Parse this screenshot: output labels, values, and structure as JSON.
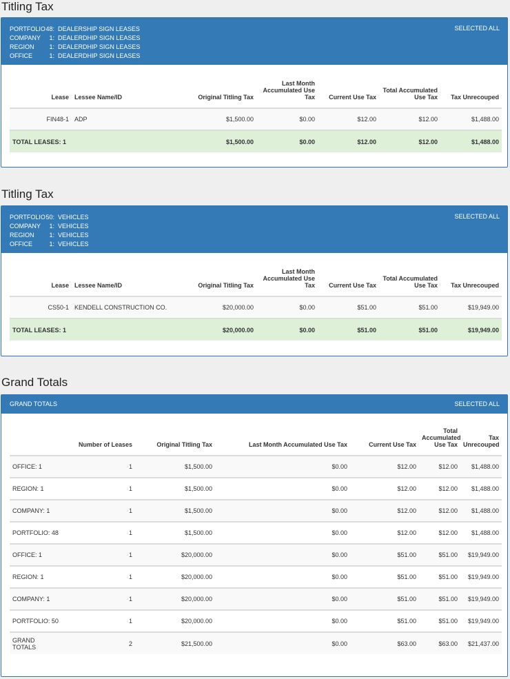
{
  "sections": [
    {
      "title": "Titling Tax",
      "header_lines": [
        {
          "key": "PORTFOLIO",
          "num": "48:",
          "value": "DEALERSHIP SIGN LEASES"
        },
        {
          "key": "COMPANY",
          "num": "1:",
          "value": "DEALERDHIP SIGN LEASES"
        },
        {
          "key": "REGION",
          "num": "1:",
          "value": "DEALERDHIP SIGN LEASES"
        },
        {
          "key": "OFFICE",
          "num": "1:",
          "value": "DEALERDHIP SIGN LEASES"
        }
      ],
      "selected_all": "SELECTED ALL",
      "columns": [
        "Lease",
        "Lessee Name/ID",
        "Original Titling Tax",
        "Last Month Accumulated Use Tax",
        "Current Use Tax",
        "Total Accumulated Use Tax",
        "Tax Unrecouped"
      ],
      "row": {
        "lease": "FIN48-1",
        "lessee": "ADP",
        "original": "$1,500.00",
        "last_month": "$0.00",
        "current": "$12.00",
        "total_accum": "$12.00",
        "unrecouped": "$1,488.00"
      },
      "total": {
        "label": "TOTAL LEASES: 1",
        "original": "$1,500.00",
        "last_month": "$0.00",
        "current": "$12.00",
        "total_accum": "$12.00",
        "unrecouped": "$1,488.00"
      }
    },
    {
      "title": "Titling Tax",
      "header_lines": [
        {
          "key": "PORTFOLIO",
          "num": "50:",
          "value": "VEHICLES"
        },
        {
          "key": "COMPANY",
          "num": "1:",
          "value": "VEHICLES"
        },
        {
          "key": "REGION",
          "num": "1:",
          "value": "VEHICLES"
        },
        {
          "key": "OFFICE",
          "num": "1:",
          "value": "VEHICLES"
        }
      ],
      "selected_all": "SELECTED ALL",
      "columns": [
        "Lease",
        "Lessee Name/ID",
        "Original Titling Tax",
        "Last Month Accumulated Use Tax",
        "Current Use Tax",
        "Total Accumulated Use Tax",
        "Tax Unrecouped"
      ],
      "row": {
        "lease": "CS50-1",
        "lessee": "KENDELL CONSTRUCTION CO.",
        "original": "$20,000.00",
        "last_month": "$0.00",
        "current": "$51.00",
        "total_accum": "$51.00",
        "unrecouped": "$19,949.00"
      },
      "total": {
        "label": "TOTAL LEASES: 1",
        "original": "$20,000.00",
        "last_month": "$0.00",
        "current": "$51.00",
        "total_accum": "$51.00",
        "unrecouped": "$19,949.00"
      }
    }
  ],
  "grand": {
    "title": "Grand Totals",
    "header_label": "GRAND TOTALS",
    "selected_all": "SELECTED ALL",
    "columns": [
      "",
      "Number of Leases",
      "Original Titling Tax",
      "Last Month Accumulated Use Tax",
      "Current Use Tax",
      "Total Accumulated Use Tax",
      "Tax Unrecouped"
    ],
    "rows": [
      {
        "label": "OFFICE: 1",
        "count": "1",
        "original": "$1,500.00",
        "last_month": "$0.00",
        "current": "$12.00",
        "total_accum": "$12.00",
        "unrecouped": "$1,488.00"
      },
      {
        "label": "REGION: 1",
        "count": "1",
        "original": "$1,500.00",
        "last_month": "$0.00",
        "current": "$12.00",
        "total_accum": "$12.00",
        "unrecouped": "$1,488.00"
      },
      {
        "label": "COMPANY: 1",
        "count": "1",
        "original": "$1,500.00",
        "last_month": "$0.00",
        "current": "$12.00",
        "total_accum": "$12.00",
        "unrecouped": "$1,488.00"
      },
      {
        "label": "PORTFOLIO: 48",
        "count": "1",
        "original": "$1,500.00",
        "last_month": "$0.00",
        "current": "$12.00",
        "total_accum": "$12.00",
        "unrecouped": "$1,488.00"
      },
      {
        "label": "OFFICE: 1",
        "count": "1",
        "original": "$20,000.00",
        "last_month": "$0.00",
        "current": "$51.00",
        "total_accum": "$51.00",
        "unrecouped": "$19,949.00"
      },
      {
        "label": "REGION: 1",
        "count": "1",
        "original": "$20,000.00",
        "last_month": "$0.00",
        "current": "$51.00",
        "total_accum": "$51.00",
        "unrecouped": "$19,949.00"
      },
      {
        "label": "COMPANY: 1",
        "count": "1",
        "original": "$20,000.00",
        "last_month": "$0.00",
        "current": "$51.00",
        "total_accum": "$51.00",
        "unrecouped": "$19,949.00"
      },
      {
        "label": "PORTFOLIO: 50",
        "count": "1",
        "original": "$20,000.00",
        "last_month": "$0.00",
        "current": "$51.00",
        "total_accum": "$51.00",
        "unrecouped": "$19,949.00"
      },
      {
        "label": "GRAND TOTALS",
        "count": "2",
        "original": "$21,500.00",
        "last_month": "$0.00",
        "current": "$63.00",
        "total_accum": "$63.00",
        "unrecouped": "$21,437.00"
      }
    ]
  }
}
